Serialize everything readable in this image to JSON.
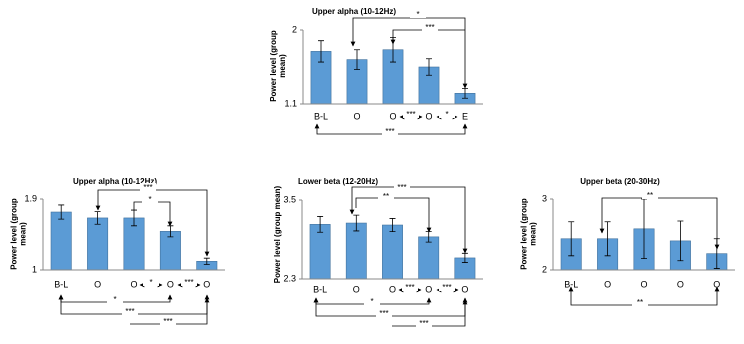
{
  "chart_data": [
    {
      "type": "bar",
      "title": "Upper alpha (10-12Hz)",
      "ylabel": "Power level (group mean)",
      "categories": [
        "B-L",
        "O",
        "O",
        "O",
        "E"
      ],
      "values": [
        1.74,
        1.64,
        1.76,
        1.55,
        1.23
      ],
      "errors": [
        0.13,
        0.12,
        0.15,
        0.1,
        0.06
      ],
      "color": "#5b9bd5",
      "ylim": [
        1.1,
        2
      ],
      "yticks": [
        1.1,
        2
      ],
      "annotations": [
        "*",
        "***",
        "***",
        "***",
        "*"
      ]
    },
    {
      "type": "bar",
      "title": "Upper alpha (10-12Hz)",
      "ylabel": "Power level (group mean)",
      "categories": [
        "B-L",
        "O",
        "O",
        "O",
        "O"
      ],
      "values": [
        1.735,
        1.66,
        1.66,
        1.49,
        1.11
      ],
      "errors": [
        0.09,
        0.08,
        0.1,
        0.07,
        0.04
      ],
      "color": "#5b9bd5",
      "ylim": [
        1,
        1.9
      ],
      "yticks": [
        1,
        1.9
      ],
      "annotations": [
        "***",
        "*",
        "*",
        "***",
        "*",
        "***",
        "***"
      ]
    },
    {
      "type": "bar",
      "title": "Lower beta (12-20Hz)",
      "ylabel": "Power level (group mean)",
      "categories": [
        "B-L",
        "O",
        "O",
        "O",
        "O"
      ],
      "values": [
        3.13,
        3.15,
        3.12,
        2.94,
        2.62
      ],
      "errors": [
        0.12,
        0.12,
        0.1,
        0.08,
        0.07
      ],
      "color": "#5b9bd5",
      "ylim": [
        2.3,
        3.5
      ],
      "yticks": [
        2.3,
        3.5
      ],
      "annotations": [
        "***",
        "**",
        "***",
        "***",
        "*",
        "***",
        "***"
      ]
    },
    {
      "type": "bar",
      "title": "Upper beta (20-30Hz)",
      "ylabel": "Power level (group mean)",
      "categories": [
        "B-L",
        "O",
        "O",
        "O",
        "O"
      ],
      "values": [
        2.44,
        2.44,
        2.58,
        2.41,
        2.23
      ],
      "errors": [
        0.24,
        0.24,
        0.42,
        0.28,
        0.21
      ],
      "color": "#5b9bd5",
      "ylim": [
        2,
        3
      ],
      "yticks": [
        2,
        3
      ],
      "annotations": [
        "**",
        "**"
      ]
    }
  ]
}
